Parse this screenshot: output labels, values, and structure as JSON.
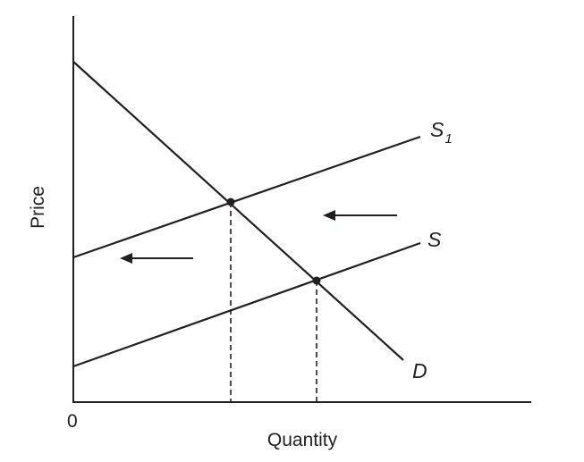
{
  "diagram": {
    "axes": {
      "xlabel": "Quantity",
      "ylabel": "Price",
      "origin": "0"
    },
    "curves": {
      "demand": {
        "label": "D"
      },
      "supply_original": {
        "label": "S"
      },
      "supply_shifted": {
        "label": "S",
        "subscript": "1"
      }
    },
    "shift_direction": "left",
    "equilibria": 2,
    "colors": {
      "ink": "#231f20",
      "background": "#ffffff"
    }
  }
}
